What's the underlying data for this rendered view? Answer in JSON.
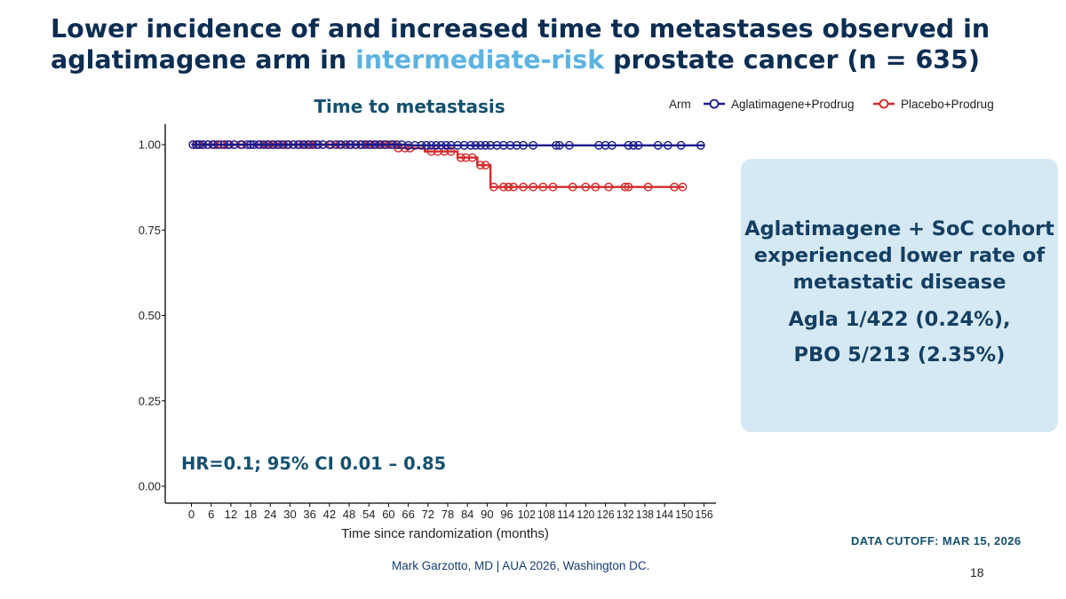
{
  "slide": {
    "title_part1": "Lower incidence of and increased time to metastases observed in aglatimagene arm in ",
    "title_highlight": "intermediate-risk",
    "title_part2": " prostate cancer (n = 635)",
    "page_number": "18",
    "data_cutoff": "DATA CUTOFF: MAR 15, 2026",
    "footer": "Mark Garzotto, MD |  AUA 2026, Washington DC."
  },
  "callout": {
    "line1": "Aglatimagene + SoC cohort experienced lower rate of metastatic disease",
    "stat1": "Agla 1/422 (0.24%),",
    "stat2": "PBO 5/213 (2.35%)"
  },
  "chart_data": {
    "type": "line",
    "title": "Time to metastasis",
    "xlabel": "Time since randomization (months)",
    "ylabel": "",
    "xlim": [
      -20,
      160
    ],
    "ylim": [
      0,
      1
    ],
    "x_ticks": [
      0,
      6,
      12,
      18,
      24,
      30,
      36,
      42,
      48,
      54,
      60,
      66,
      72,
      78,
      84,
      90,
      96,
      102,
      108,
      114,
      120,
      126,
      132,
      138,
      144,
      150,
      156
    ],
    "y_ticks": [
      0.0,
      0.25,
      0.5,
      0.75,
      1.0
    ],
    "y_tick_labels": [
      "0.00",
      "0.25",
      "0.50",
      "0.75",
      "1.00"
    ],
    "legend_title": "Arm",
    "legend_position": "top-right",
    "annotation": "HR=0.1; 95% CI 0.01 – 0.85",
    "series": [
      {
        "name": "Aglatimagene+Prodrug",
        "color": "#1a1a8c",
        "steps": [
          [
            0,
            1.0
          ],
          [
            66,
            1.0
          ],
          [
            66,
            0.998
          ],
          [
            156,
            0.998
          ]
        ],
        "censored": [
          0.5,
          1.5,
          2.5,
          3.5,
          5,
          6.5,
          8,
          10,
          11.5,
          13,
          15,
          17,
          18,
          19,
          20.5,
          22,
          23.5,
          25,
          26.5,
          28,
          29.5,
          31,
          32.5,
          34,
          35.5,
          37,
          38.5,
          40,
          42,
          44,
          45.5,
          47,
          48.5,
          50,
          51.5,
          53,
          54.5,
          56,
          57.5,
          59,
          61,
          62.5,
          64,
          66,
          68,
          70,
          71.5,
          73,
          74.5,
          76,
          77.5,
          79,
          81,
          83,
          85,
          86.5,
          88,
          89.5,
          91,
          93,
          95,
          97,
          99,
          101,
          104,
          111,
          112,
          115,
          124,
          126,
          128,
          133,
          134.5,
          136,
          142,
          145,
          149,
          155
        ]
      },
      {
        "name": "Placebo+Prodrug",
        "color": "#d22a2a",
        "steps": [
          [
            0,
            1.0
          ],
          [
            63,
            1.0
          ],
          [
            63,
            0.99
          ],
          [
            71,
            0.99
          ],
          [
            71,
            0.98
          ],
          [
            81,
            0.98
          ],
          [
            81,
            0.962
          ],
          [
            87,
            0.962
          ],
          [
            87,
            0.94
          ],
          [
            91,
            0.94
          ],
          [
            91,
            0.876
          ],
          [
            150,
            0.876
          ]
        ],
        "censored": [
          0.5,
          2,
          3.5,
          5,
          7,
          9,
          11,
          13,
          15.5,
          18,
          21,
          23,
          24.5,
          26,
          27.5,
          29,
          31,
          33,
          34.5,
          36,
          38,
          40,
          42.5,
          45,
          48,
          50,
          52,
          54,
          55.5,
          57,
          58.5,
          60,
          61.5,
          63,
          65,
          66.5,
          73,
          75,
          77,
          79,
          82,
          83.5,
          85.5,
          88,
          89.5,
          92,
          95,
          96.5,
          98,
          101,
          104,
          107,
          110,
          116,
          120,
          123,
          127,
          132,
          133,
          139,
          147,
          149.5
        ]
      }
    ]
  }
}
